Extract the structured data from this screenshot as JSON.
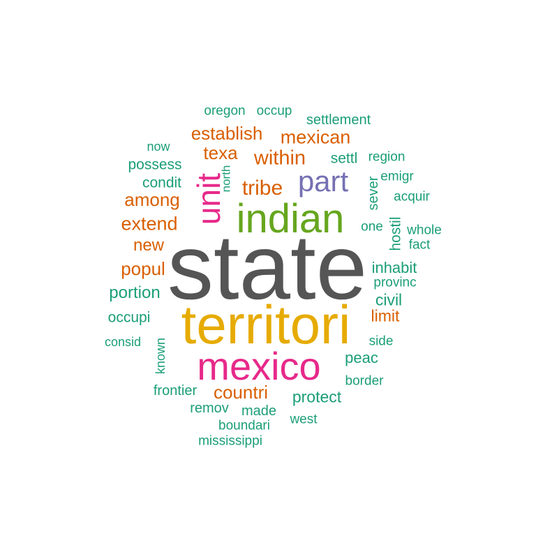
{
  "palette": {
    "teal": "#1b9e77",
    "orange": "#d95f02",
    "purple": "#7570b3",
    "pink": "#e7298a",
    "green": "#66a61e",
    "gold": "#e6ab02",
    "dark": "#555555"
  },
  "words": [
    {
      "id": "state",
      "text": "state",
      "color": "#555555"
    },
    {
      "id": "territori",
      "text": "territori",
      "color": "#e6ab02"
    },
    {
      "id": "mexico",
      "text": "mexico",
      "color": "#e7298a"
    },
    {
      "id": "indian",
      "text": "indian",
      "color": "#66a61e"
    },
    {
      "id": "unit",
      "text": "unit",
      "color": "#e7298a"
    },
    {
      "id": "part",
      "text": "part",
      "color": "#7570b3"
    },
    {
      "id": "tribe",
      "text": "tribe",
      "color": "#d95f02"
    },
    {
      "id": "within",
      "text": "within",
      "color": "#d95f02"
    },
    {
      "id": "mexican",
      "text": "mexican",
      "color": "#d95f02"
    },
    {
      "id": "establish",
      "text": "establish",
      "color": "#d95f02"
    },
    {
      "id": "texa",
      "text": "texa",
      "color": "#d95f02"
    },
    {
      "id": "among",
      "text": "among",
      "color": "#d95f02"
    },
    {
      "id": "extend",
      "text": "extend",
      "color": "#d95f02"
    },
    {
      "id": "new",
      "text": "new",
      "color": "#d95f02"
    },
    {
      "id": "popul",
      "text": "popul",
      "color": "#d95f02"
    },
    {
      "id": "countri",
      "text": "countri",
      "color": "#d95f02"
    },
    {
      "id": "limit",
      "text": "limit",
      "color": "#d95f02"
    },
    {
      "id": "oregon",
      "text": "oregon",
      "color": "#1b9e77"
    },
    {
      "id": "occup",
      "text": "occup",
      "color": "#1b9e77"
    },
    {
      "id": "settlement",
      "text": "settlement",
      "color": "#1b9e77"
    },
    {
      "id": "now",
      "text": "now",
      "color": "#1b9e77"
    },
    {
      "id": "possess",
      "text": "possess",
      "color": "#1b9e77"
    },
    {
      "id": "condit",
      "text": "condit",
      "color": "#1b9e77"
    },
    {
      "id": "north",
      "text": "north",
      "color": "#1b9e77"
    },
    {
      "id": "settl",
      "text": "settl",
      "color": "#1b9e77"
    },
    {
      "id": "region",
      "text": "region",
      "color": "#1b9e77"
    },
    {
      "id": "emigr",
      "text": "emigr",
      "color": "#1b9e77"
    },
    {
      "id": "sever",
      "text": "sever",
      "color": "#1b9e77"
    },
    {
      "id": "acquir",
      "text": "acquir",
      "color": "#1b9e77"
    },
    {
      "id": "one",
      "text": "one",
      "color": "#1b9e77"
    },
    {
      "id": "whole",
      "text": "whole",
      "color": "#1b9e77"
    },
    {
      "id": "hostil",
      "text": "hostil",
      "color": "#1b9e77"
    },
    {
      "id": "fact",
      "text": "fact",
      "color": "#1b9e77"
    },
    {
      "id": "inhabit",
      "text": "inhabit",
      "color": "#1b9e77"
    },
    {
      "id": "provinc",
      "text": "provinc",
      "color": "#1b9e77"
    },
    {
      "id": "portion",
      "text": "portion",
      "color": "#1b9e77"
    },
    {
      "id": "civil",
      "text": "civil",
      "color": "#1b9e77"
    },
    {
      "id": "occupi",
      "text": "occupi",
      "color": "#1b9e77"
    },
    {
      "id": "consid",
      "text": "consid",
      "color": "#1b9e77"
    },
    {
      "id": "known",
      "text": "known",
      "color": "#1b9e77"
    },
    {
      "id": "side",
      "text": "side",
      "color": "#1b9e77"
    },
    {
      "id": "peac",
      "text": "peac",
      "color": "#1b9e77"
    },
    {
      "id": "border",
      "text": "border",
      "color": "#1b9e77"
    },
    {
      "id": "frontier",
      "text": "frontier",
      "color": "#1b9e77"
    },
    {
      "id": "protect",
      "text": "protect",
      "color": "#1b9e77"
    },
    {
      "id": "remov",
      "text": "remov",
      "color": "#1b9e77"
    },
    {
      "id": "made",
      "text": "made",
      "color": "#1b9e77"
    },
    {
      "id": "west",
      "text": "west",
      "color": "#1b9e77"
    },
    {
      "id": "boundari",
      "text": "boundari",
      "color": "#1b9e77"
    },
    {
      "id": "mississippi",
      "text": "mississippi",
      "color": "#1b9e77"
    }
  ]
}
